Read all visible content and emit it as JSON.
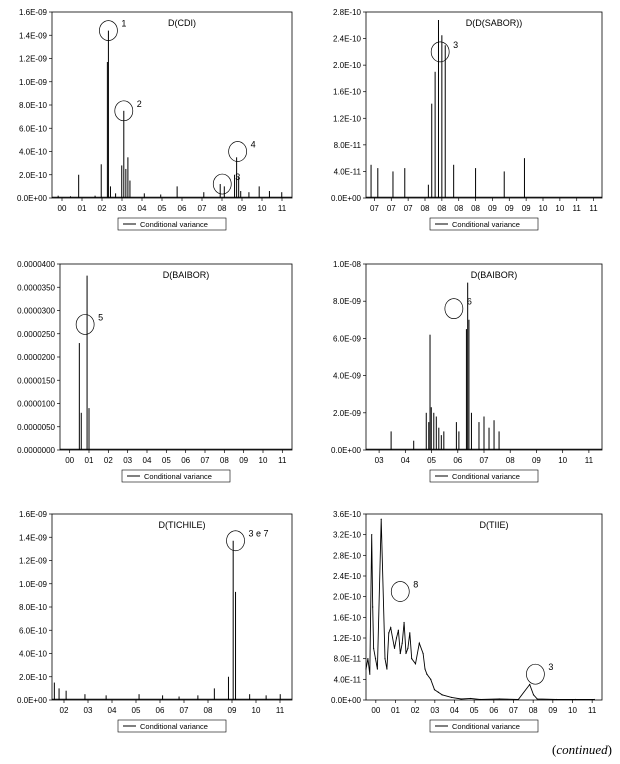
{
  "footer": {
    "continued_open": "(",
    "continued_word": "continued",
    "continued_close": ")"
  },
  "chart_data": [
    {
      "type": "bar",
      "title": "D(CDI)",
      "legend": "Conditional variance",
      "y_ticks": [
        "0.0E+00",
        "2.0E-10",
        "4.0E-10",
        "6.0E-10",
        "8.0E-10",
        "1.0E-09",
        "1.2E-09",
        "1.4E-09",
        "1.6E-09"
      ],
      "ylim": [
        0,
        1.6e-09
      ],
      "x_ticks": [
        "00",
        "01",
        "02",
        "03",
        "04",
        "05",
        "06",
        "07",
        "08",
        "09",
        "10",
        "11"
      ],
      "xlim": [
        0,
        11.7
      ],
      "x": [
        0.3,
        0.9,
        1.3,
        2.1,
        2.4,
        2.7,
        2.75,
        2.85,
        3.1,
        3.4,
        3.5,
        3.6,
        3.7,
        3.8,
        4.5,
        5.3,
        6.1,
        7.4,
        8.2,
        8.4,
        8.9,
        9.0,
        9.1,
        9.2,
        9.6,
        10.1,
        10.6,
        11.2
      ],
      "values": [
        2e-11,
        1.5e-11,
        2e-10,
        2e-11,
        2.9e-10,
        1.17e-09,
        1.44e-09,
        1e-10,
        4e-11,
        2.8e-10,
        7.5e-10,
        2.5e-10,
        3.5e-10,
        1.5e-10,
        4e-11,
        3e-11,
        1e-10,
        5e-11,
        1.2e-10,
        1e-10,
        2e-10,
        3.5e-10,
        1.8e-10,
        6e-11,
        5e-11,
        1e-10,
        6e-11,
        5e-11
      ],
      "annotations": [
        {
          "label": "1",
          "x": 2.75,
          "y": 1.44e-09
        },
        {
          "label": "2",
          "x": 3.5,
          "y": 7.5e-10
        },
        {
          "label": "3",
          "x": 8.3,
          "y": 1.2e-10
        },
        {
          "label": "4",
          "x": 9.05,
          "y": 4e-10
        }
      ]
    },
    {
      "type": "bar",
      "title": "D(D(SABOR))",
      "legend": "Conditional variance",
      "y_ticks": [
        "0.0E+00",
        "4.0E-11",
        "8.0E-11",
        "1.2E-10",
        "1.6E-10",
        "2.0E-10",
        "2.4E-10",
        "2.8E-10"
      ],
      "ylim": [
        0,
        2.8e-10
      ],
      "x_ticks": [
        "07",
        "07",
        "07",
        "08",
        "08",
        "08",
        "08",
        "09",
        "09",
        "09",
        "10",
        "10",
        "11",
        "11"
      ],
      "xlim": [
        0,
        14
      ],
      "x": [
        0.3,
        0.7,
        1.6,
        2.3,
        3.7,
        3.9,
        4.1,
        4.3,
        4.5,
        4.7,
        5.2,
        6.5,
        8.2,
        9.4
      ],
      "values": [
        5e-11,
        4.5e-11,
        4e-11,
        4.5e-11,
        2e-11,
        1.42e-10,
        1.9e-10,
        2.68e-10,
        2.45e-10,
        2.3e-10,
        5e-11,
        4.5e-11,
        4e-11,
        6e-11
      ],
      "annotations": [
        {
          "label": "3",
          "x": 4.4,
          "y": 2.2e-10
        }
      ]
    },
    {
      "type": "bar",
      "title": "D(BAIBOR)",
      "legend": "Conditional variance",
      "y_ticks": [
        "0.0000000",
        "0.0000050",
        "0.0000100",
        "0.0000150",
        "0.0000200",
        "0.0000250",
        "0.0000300",
        "0.0000350",
        "0.0000400"
      ],
      "ylim": [
        0,
        4e-05
      ],
      "x_ticks": [
        "00",
        "01",
        "02",
        "03",
        "04",
        "05",
        "06",
        "07",
        "08",
        "09",
        "10",
        "11"
      ],
      "xlim": [
        0,
        12
      ],
      "x": [
        1.0,
        1.1,
        1.4,
        1.5
      ],
      "values": [
        2.3e-05,
        8e-06,
        3.75e-05,
        9e-06
      ],
      "annotations": [
        {
          "label": "5",
          "x": 1.3,
          "y": 2.7e-05
        }
      ]
    },
    {
      "type": "bar",
      "title": "D(BAIBOR)",
      "legend": "Conditional variance",
      "y_ticks": [
        "0.0E+00",
        "2.0E-09",
        "4.0E-09",
        "6.0E-09",
        "8.0E-09",
        "1.0E-08"
      ],
      "ylim": [
        0,
        1e-08
      ],
      "x_ticks": [
        "03",
        "04",
        "05",
        "06",
        "07",
        "08",
        "09",
        "10",
        "11"
      ],
      "xlim": [
        0,
        9.4
      ],
      "x": [
        1.0,
        1.9,
        2.4,
        2.5,
        2.55,
        2.6,
        2.7,
        2.8,
        2.9,
        3.0,
        3.1,
        3.6,
        3.7,
        4.0,
        4.05,
        4.1,
        4.2,
        4.5,
        4.7,
        4.9,
        5.1,
        5.3
      ],
      "values": [
        1e-09,
        5e-10,
        2e-09,
        1.5e-09,
        6.2e-09,
        2.3e-09,
        2e-09,
        1.8e-09,
        1.2e-09,
        8e-10,
        1e-09,
        1.5e-09,
        1e-09,
        6.5e-09,
        9e-09,
        7e-09,
        2e-09,
        1.5e-09,
        1.8e-09,
        1.2e-09,
        1.6e-09,
        1e-09
      ],
      "annotations": [
        {
          "label": "6",
          "x": 3.5,
          "y": 7.6e-09
        }
      ]
    },
    {
      "type": "bar",
      "title": "D(TICHILE)",
      "legend": "Conditional variance",
      "y_ticks": [
        "0.0E+00",
        "2.0E-10",
        "4.0E-10",
        "6.0E-10",
        "8.0E-10",
        "1.0E-09",
        "1.2E-09",
        "1.4E-09",
        "1.6E-09"
      ],
      "ylim": [
        0,
        1.6e-09
      ],
      "x_ticks": [
        "02",
        "03",
        "04",
        "05",
        "06",
        "07",
        "08",
        "09",
        "10",
        "11"
      ],
      "xlim": [
        0,
        10.2
      ],
      "x": [
        0.1,
        0.3,
        0.6,
        1.4,
        2.3,
        3.7,
        4.7,
        5.4,
        6.2,
        6.9,
        7.5,
        7.7,
        7.8,
        8.4,
        9.1,
        9.7
      ],
      "values": [
        1.5e-10,
        1e-10,
        8e-11,
        5e-11,
        4e-11,
        5e-11,
        4e-11,
        3e-11,
        4e-11,
        1e-10,
        2e-10,
        1.37e-09,
        9.3e-10,
        5e-11,
        4e-11,
        5e-11
      ],
      "annotations": [
        {
          "label": "3 e 7",
          "x": 7.8,
          "y": 1.37e-09
        }
      ]
    },
    {
      "type": "line",
      "title": "D(TIIE)",
      "legend": "Conditional variance",
      "y_ticks": [
        "0.0E+00",
        "4.0E-11",
        "8.0E-11",
        "1.2E-10",
        "1.6E-10",
        "2.0E-10",
        "2.4E-10",
        "2.8E-10",
        "3.2E-10",
        "3.6E-10"
      ],
      "ylim": [
        0,
        3.6e-10
      ],
      "x_ticks": [
        "00",
        "01",
        "02",
        "03",
        "04",
        "05",
        "06",
        "07",
        "08",
        "09",
        "10",
        "11"
      ],
      "xlim": [
        0,
        12.4
      ],
      "x": [
        0.0,
        0.1,
        0.2,
        0.3,
        0.35,
        0.4,
        0.5,
        0.6,
        0.8,
        1.0,
        1.1,
        1.2,
        1.3,
        1.5,
        1.6,
        1.7,
        1.8,
        1.9,
        2.0,
        2.1,
        2.2,
        2.3,
        2.4,
        2.6,
        2.8,
        3.0,
        3.1,
        3.2,
        3.4,
        3.6,
        3.8,
        4.0,
        4.5,
        5.0,
        5.5,
        6.0,
        7.0,
        8.0,
        8.6,
        8.8,
        9.0,
        10.0,
        11.0,
        12.0
      ],
      "values": [
        6e-11,
        8e-11,
        5e-11,
        3.2e-10,
        1.8e-10,
        1e-10,
        8e-11,
        6e-11,
        3.5e-10,
        8e-11,
        6e-11,
        1.3e-10,
        1.4e-10,
        1e-10,
        1.2e-10,
        1.35e-10,
        9e-11,
        1.1e-10,
        1.5e-10,
        9e-11,
        1e-10,
        1.3e-10,
        8e-11,
        7e-11,
        1.1e-10,
        9e-11,
        6e-11,
        5e-11,
        4e-11,
        2e-11,
        1.5e-11,
        1e-11,
        5e-12,
        2e-12,
        3e-12,
        1e-12,
        2e-12,
        1e-12,
        3e-11,
        1e-11,
        2e-12,
        1e-12,
        1e-12,
        1e-12
      ],
      "annotations": [
        {
          "label": "8",
          "x": 1.8,
          "y": 2.1e-10
        },
        {
          "label": "3",
          "x": 8.9,
          "y": 5e-11
        }
      ]
    }
  ]
}
